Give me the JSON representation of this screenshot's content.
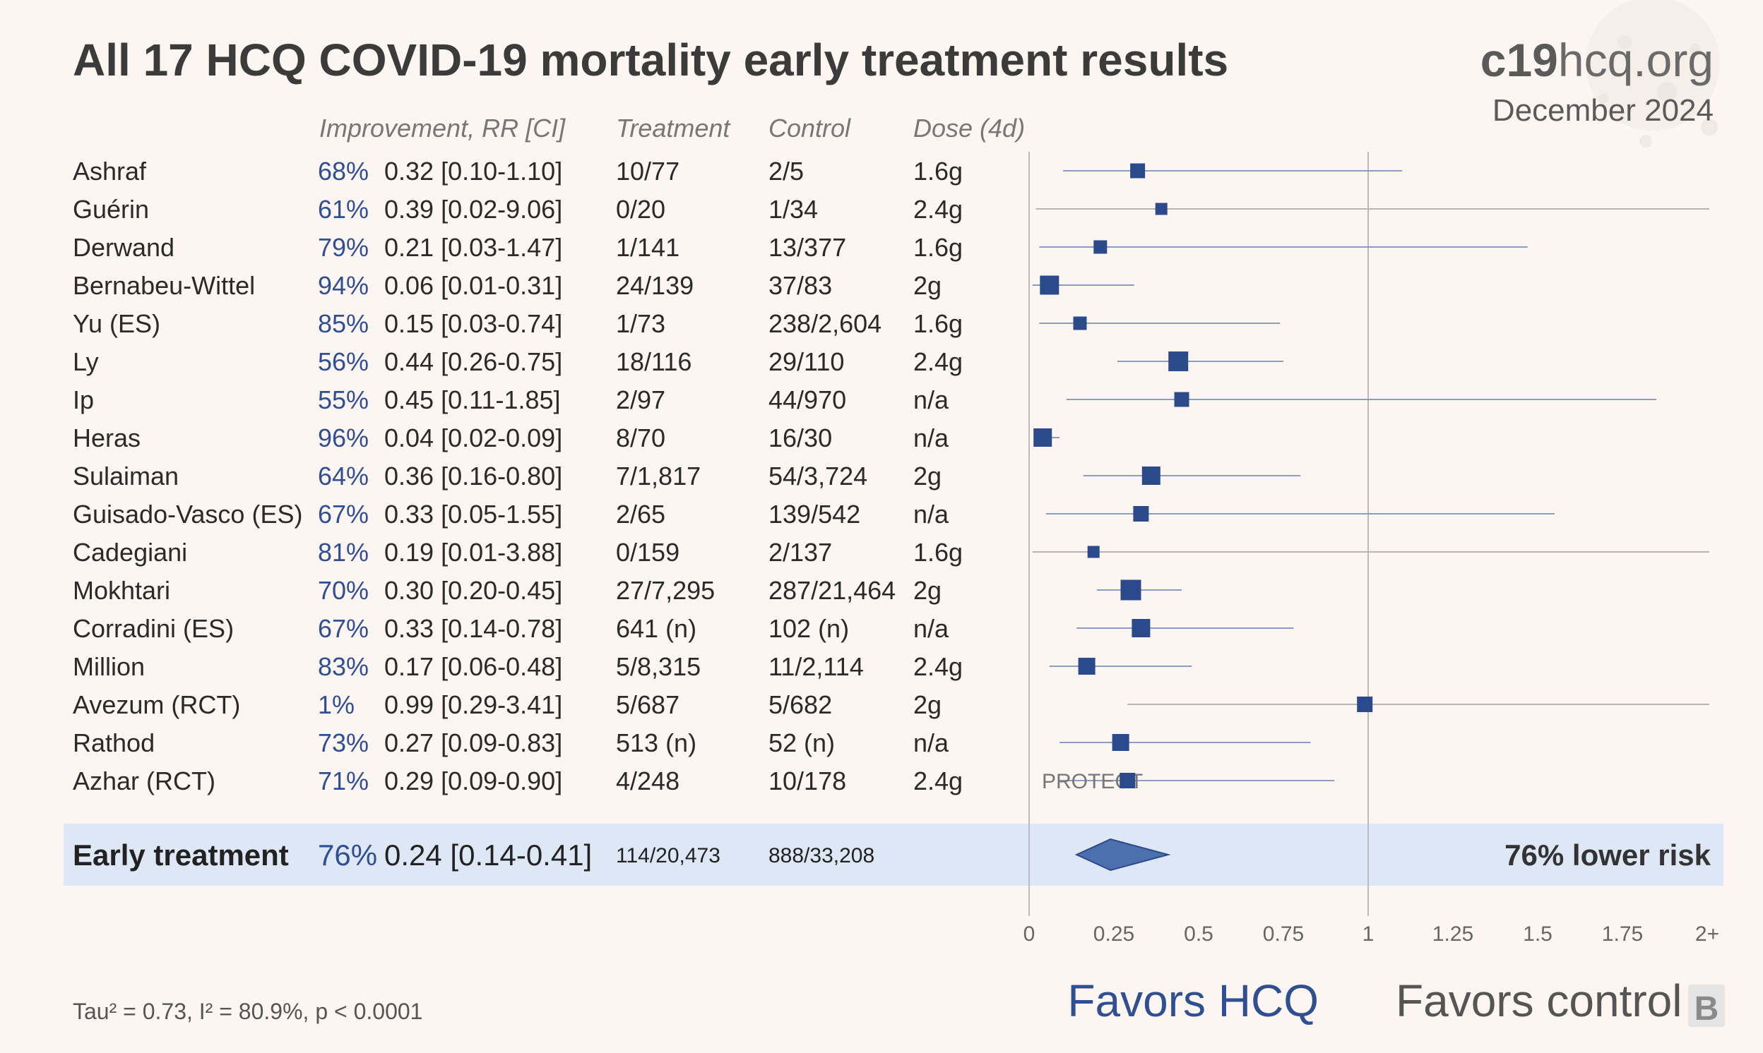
{
  "title": "All 17 HCQ COVID-19 mortality early treatment results",
  "site": {
    "bold": "c19",
    "rest": "hcq.org"
  },
  "date": "December 2024",
  "headers": {
    "improvement": "Improvement, RR [CI]",
    "treatment": "Treatment",
    "control": "Control",
    "dose": "Dose (4d)"
  },
  "favors": {
    "left": "Favors HCQ",
    "right": "Favors control"
  },
  "stats": "Tau² = 0.73, I² = 80.9%, p < 0.0001",
  "corner_mark": "B",
  "colors": {
    "blue": "#2f4f93",
    "marker": "#2b4a8c",
    "band": "#dde7f5",
    "ci_line": "#8a9cc0",
    "ci_line_gray": "#b5b5b5"
  },
  "chart_data": {
    "type": "forest",
    "x_axis": {
      "min": 0,
      "max": 2,
      "ticks": [
        "0",
        "0.25",
        "0.5",
        "0.75",
        "1",
        "1.25",
        "1.5",
        "1.75",
        "2+"
      ],
      "reference": 1
    },
    "studies": [
      {
        "name": "Ashraf",
        "improvement": "68%",
        "rr_text": "0.32 [0.10-1.10]",
        "rr": 0.32,
        "lo": 0.1,
        "hi": 1.1,
        "treatment": "10/77",
        "control": "2/5",
        "dose": "1.6g",
        "weight": 0.45
      },
      {
        "name": "Guérin",
        "improvement": "61%",
        "rr_text": "0.39 [0.02-9.06]",
        "rr": 0.39,
        "lo": 0.02,
        "hi": 9.06,
        "treatment": "0/20",
        "control": "1/34",
        "dose": "2.4g",
        "weight": 0.25
      },
      {
        "name": "Derwand",
        "improvement": "79%",
        "rr_text": "0.21 [0.03-1.47]",
        "rr": 0.21,
        "lo": 0.03,
        "hi": 1.47,
        "treatment": "1/141",
        "control": "13/377",
        "dose": "1.6g",
        "weight": 0.35
      },
      {
        "name": "Bernabeu-Wittel",
        "improvement": "94%",
        "rr_text": "0.06 [0.01-0.31]",
        "rr": 0.06,
        "lo": 0.01,
        "hi": 0.31,
        "treatment": "24/139",
        "control": "37/83",
        "dose": "2g",
        "weight": 0.75
      },
      {
        "name": "Yu (ES)",
        "improvement": "85%",
        "rr_text": "0.15 [0.03-0.74]",
        "rr": 0.15,
        "lo": 0.03,
        "hi": 0.74,
        "treatment": "1/73",
        "control": "238/2,604",
        "dose": "1.6g",
        "weight": 0.35
      },
      {
        "name": "Ly",
        "improvement": "56%",
        "rr_text": "0.44 [0.26-0.75]",
        "rr": 0.44,
        "lo": 0.26,
        "hi": 0.75,
        "treatment": "18/116",
        "control": "29/110",
        "dose": "2.4g",
        "weight": 0.8
      },
      {
        "name": "Ip",
        "improvement": "55%",
        "rr_text": "0.45 [0.11-1.85]",
        "rr": 0.45,
        "lo": 0.11,
        "hi": 1.85,
        "treatment": "2/97",
        "control": "44/970",
        "dose": "n/a",
        "weight": 0.45
      },
      {
        "name": "Heras",
        "improvement": "96%",
        "rr_text": "0.04 [0.02-0.09]",
        "rr": 0.04,
        "lo": 0.02,
        "hi": 0.09,
        "treatment": "8/70",
        "control": "16/30",
        "dose": "n/a",
        "weight": 0.7
      },
      {
        "name": "Sulaiman",
        "improvement": "64%",
        "rr_text": "0.36 [0.16-0.80]",
        "rr": 0.36,
        "lo": 0.16,
        "hi": 0.8,
        "treatment": "7/1,817",
        "control": "54/3,724",
        "dose": "2g",
        "weight": 0.7
      },
      {
        "name": "Guisado-Vasco (ES)",
        "improvement": "67%",
        "rr_text": "0.33 [0.05-1.55]",
        "rr": 0.33,
        "lo": 0.05,
        "hi": 1.55,
        "treatment": "2/65",
        "control": "139/542",
        "dose": "n/a",
        "weight": 0.5
      },
      {
        "name": "Cadegiani",
        "improvement": "81%",
        "rr_text": "0.19 [0.01-3.88]",
        "rr": 0.19,
        "lo": 0.01,
        "hi": 3.88,
        "treatment": "0/159",
        "control": "2/137",
        "dose": "1.6g",
        "weight": 0.25
      },
      {
        "name": "Mokhtari",
        "improvement": "70%",
        "rr_text": "0.30 [0.20-0.45]",
        "rr": 0.3,
        "lo": 0.2,
        "hi": 0.45,
        "treatment": "27/7,295",
        "control": "287/21,464",
        "dose": "2g",
        "weight": 0.85
      },
      {
        "name": "Corradini (ES)",
        "improvement": "67%",
        "rr_text": "0.33 [0.14-0.78]",
        "rr": 0.33,
        "lo": 0.14,
        "hi": 0.78,
        "treatment": "641 (n)",
        "control": "102 (n)",
        "dose": "n/a",
        "weight": 0.7
      },
      {
        "name": "Million",
        "improvement": "83%",
        "rr_text": "0.17 [0.06-0.48]",
        "rr": 0.17,
        "lo": 0.06,
        "hi": 0.48,
        "treatment": "5/8,315",
        "control": "11/2,114",
        "dose": "2.4g",
        "weight": 0.6
      },
      {
        "name": "Avezum (RCT)",
        "improvement": "1%",
        "rr_text": "0.99 [0.29-3.41]",
        "rr": 0.99,
        "lo": 0.29,
        "hi": 3.41,
        "treatment": "5/687",
        "control": "5/682",
        "dose": "2g",
        "weight": 0.5
      },
      {
        "name": "Rathod",
        "improvement": "73%",
        "rr_text": "0.27 [0.09-0.83]",
        "rr": 0.27,
        "lo": 0.09,
        "hi": 0.83,
        "treatment": "513 (n)",
        "control": "52 (n)",
        "dose": "n/a",
        "weight": 0.6
      },
      {
        "name": "Azhar (RCT)",
        "improvement": "71%",
        "rr_text": "0.29 [0.09-0.90]",
        "rr": 0.29,
        "lo": 0.09,
        "hi": 0.9,
        "treatment": "4/248",
        "control": "10/178",
        "dose": "2.4g",
        "weight": 0.5,
        "annotation": "PROTECT"
      }
    ],
    "summary": {
      "name": "Early treatment",
      "improvement": "76%",
      "rr_text": "0.24 [0.14-0.41]",
      "rr": 0.24,
      "lo": 0.14,
      "hi": 0.41,
      "treatment": "114/20,473",
      "control": "888/33,208",
      "label": "76% lower risk"
    }
  }
}
